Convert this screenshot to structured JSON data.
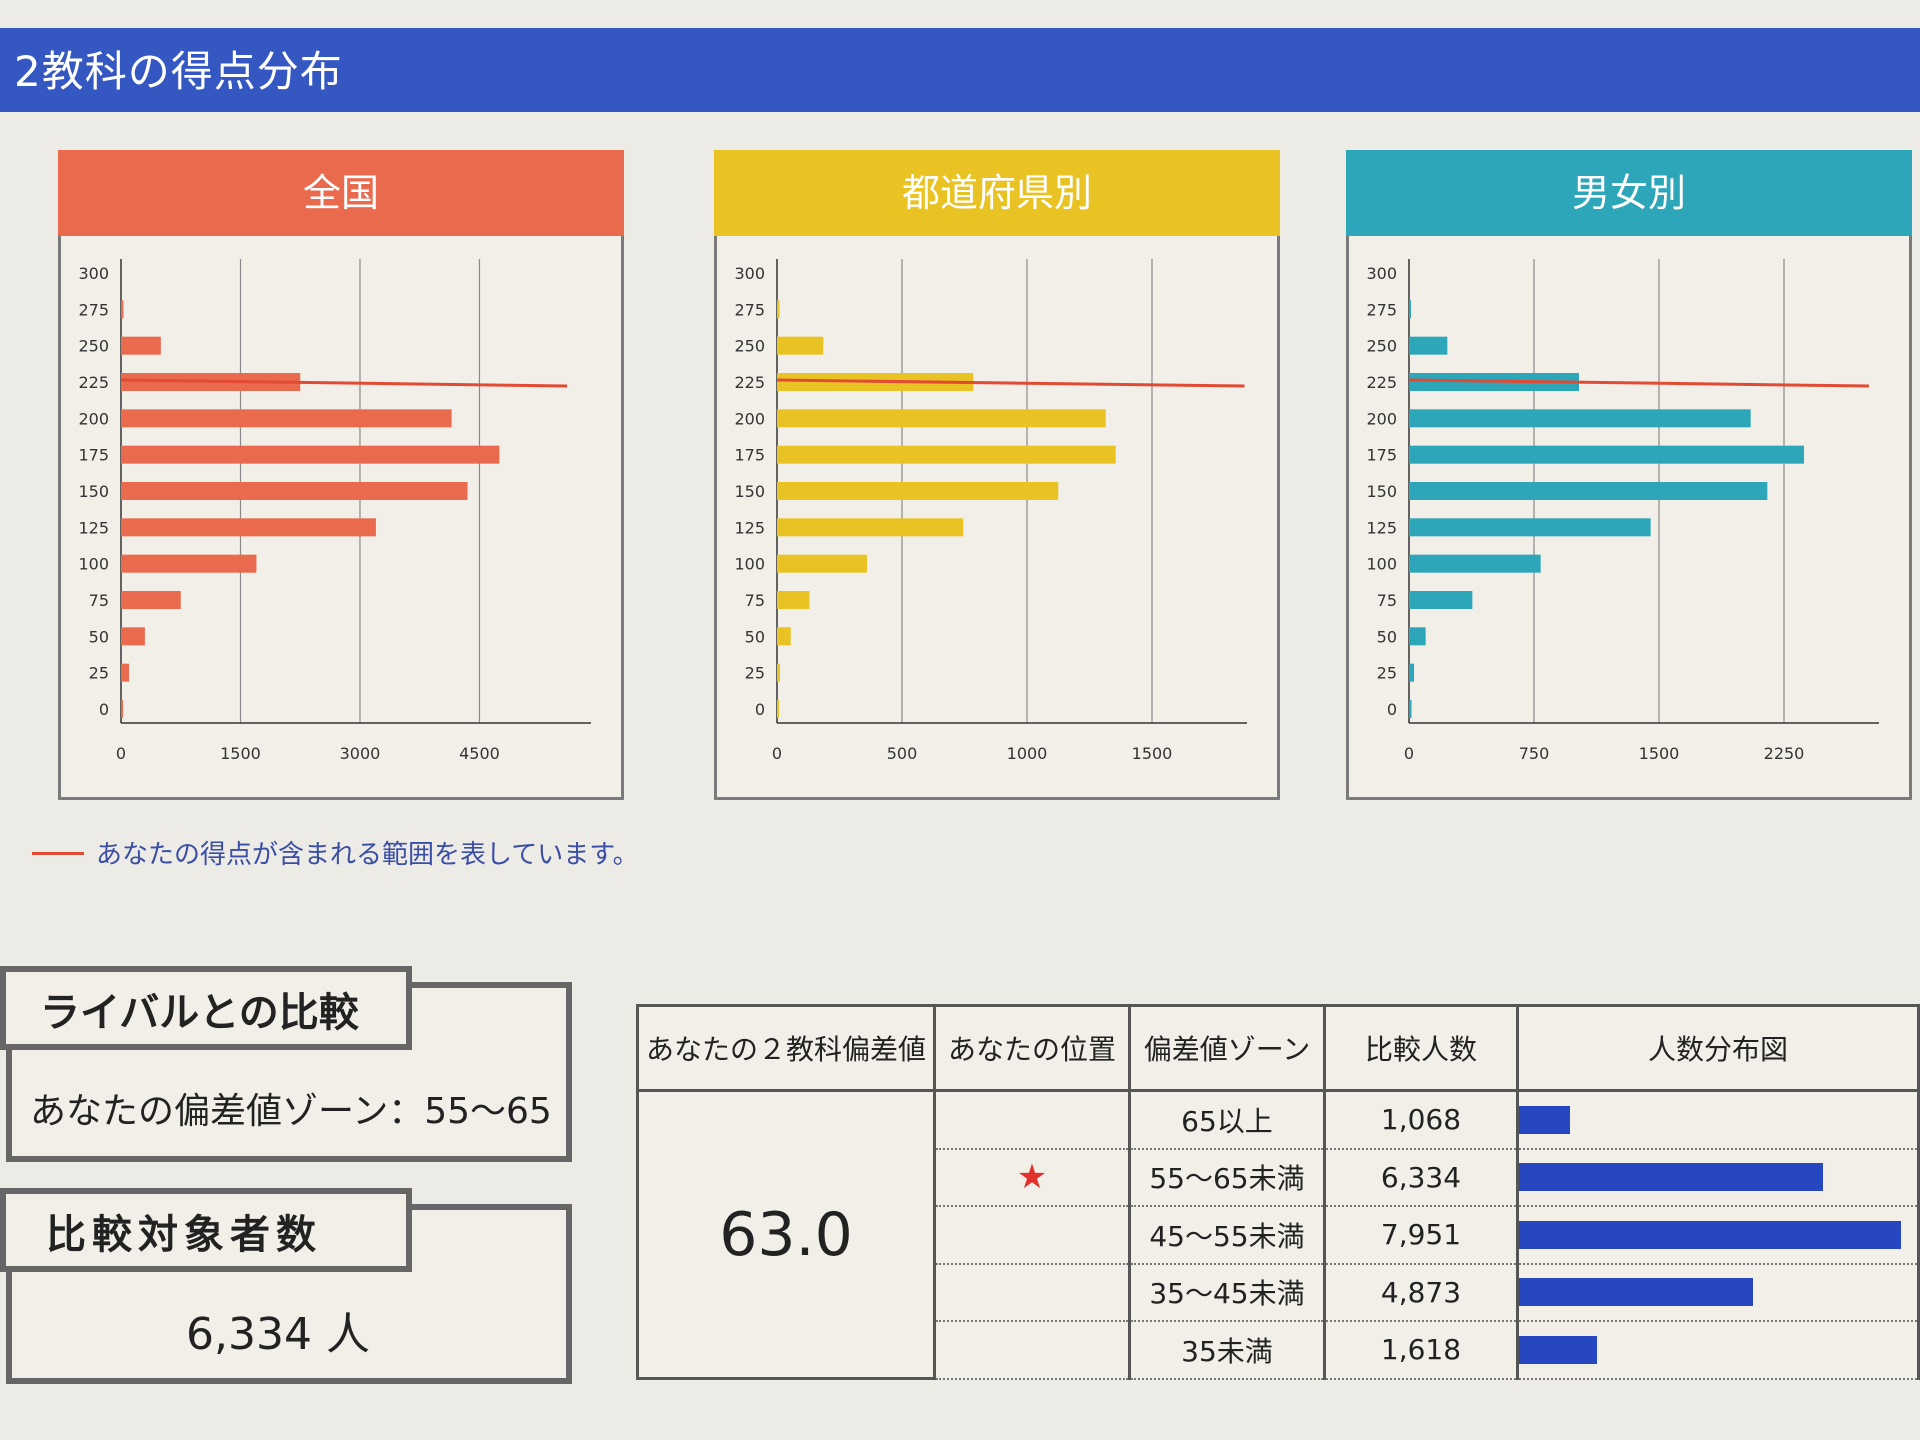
{
  "page_title": "2教科の得点分布",
  "colors": {
    "national": "#ea6a4e",
    "prefecture": "#e9c323",
    "gender": "#2ea6b9",
    "marker": "#e24a33",
    "table_bar": "#2747c0",
    "header": "#3557c2"
  },
  "chart_data": [
    {
      "type": "bar",
      "title": "全国",
      "orientation": "horizontal",
      "categories": [
        "0",
        "25",
        "50",
        "75",
        "100",
        "125",
        "150",
        "175",
        "200",
        "225",
        "250",
        "275",
        "300"
      ],
      "values": [
        20,
        100,
        300,
        750,
        1700,
        3200,
        4350,
        4750,
        4150,
        2250,
        500,
        30,
        0
      ],
      "xlim": [
        0,
        5900
      ],
      "xticks": [
        "0",
        "1500",
        "3000",
        "4500"
      ],
      "marker": {
        "category": "225",
        "to": 5600
      }
    },
    {
      "type": "bar",
      "title": "都道府県別",
      "orientation": "horizontal",
      "categories": [
        "0",
        "25",
        "50",
        "75",
        "100",
        "125",
        "150",
        "175",
        "200",
        "225",
        "250",
        "275",
        "300"
      ],
      "values": [
        8,
        12,
        55,
        130,
        360,
        745,
        1125,
        1355,
        1315,
        785,
        185,
        10,
        0
      ],
      "xlim": [
        0,
        1880
      ],
      "xticks": [
        "0",
        "500",
        "1000",
        "1500"
      ],
      "marker": {
        "category": "225",
        "to": 1870
      }
    },
    {
      "type": "bar",
      "title": "男女別",
      "orientation": "horizontal",
      "categories": [
        "0",
        "25",
        "50",
        "75",
        "100",
        "125",
        "150",
        "175",
        "200",
        "225",
        "250",
        "275",
        "300"
      ],
      "values": [
        15,
        30,
        100,
        380,
        790,
        1450,
        2150,
        2370,
        2050,
        1020,
        230,
        10,
        0
      ],
      "xlim": [
        0,
        2820
      ],
      "xticks": [
        "0",
        "750",
        "1500",
        "2250"
      ],
      "marker": {
        "category": "225",
        "to": 2760
      }
    }
  ],
  "legend_text": "あなたの得点が含まれる範囲を表しています。",
  "rival": {
    "label": "ライバルとの比較",
    "value": "あなたの偏差値ゾーン：55～65"
  },
  "count": {
    "label": "比較対象者数",
    "value": "6,334 人"
  },
  "table": {
    "headers": [
      "あなたの２教科偏差値",
      "あなたの位置",
      "偏差値ゾーン",
      "比較人数",
      "人数分布図"
    ],
    "score": "63.0",
    "star": "★",
    "rows": [
      {
        "zone": "65以上",
        "count": "1,068",
        "value": 1068
      },
      {
        "zone": "55～65未満",
        "count": "6,334",
        "value": 6334
      },
      {
        "zone": "45～55未満",
        "count": "7,951",
        "value": 7951
      },
      {
        "zone": "35～45未満",
        "count": "4,873",
        "value": 4873
      },
      {
        "zone": "35未満",
        "count": "1,618",
        "value": 1618
      }
    ]
  }
}
